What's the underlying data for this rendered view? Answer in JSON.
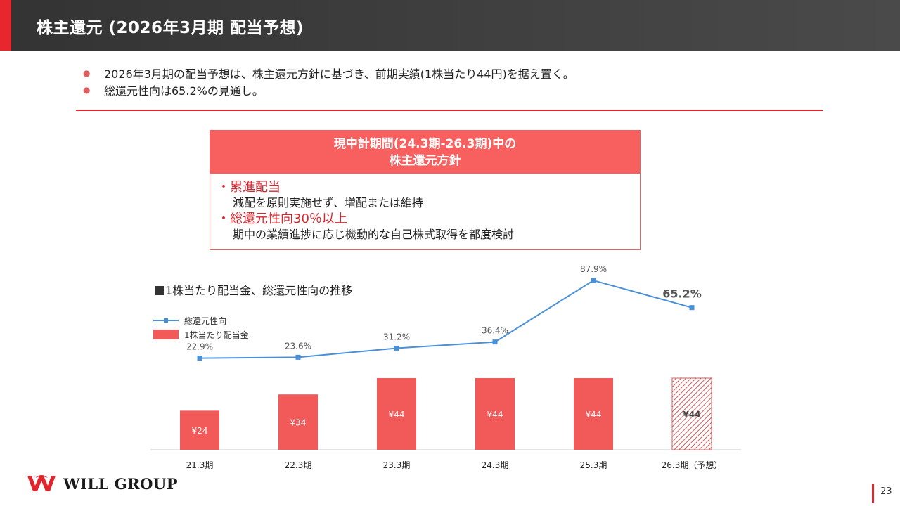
{
  "header": {
    "title": "株主還元 (2026年3月期 配当予想)"
  },
  "bullets": [
    "2026年3月期の配当予想は、株主還元方針に基づき、前期実績(1株当たり44円)を据え置く。",
    "総還元性向は65.2%の見通し。"
  ],
  "policy": {
    "heading_line1": "現中計期間(24.3期-26.3期)中の",
    "heading_line2": "株主還元方針",
    "items": [
      {
        "title": "・累進配当",
        "desc": "減配を原則実施せず、増配または維持"
      },
      {
        "title": "・総還元性向30％以上",
        "desc": "期中の業績進捗に応じ機動的な自己株式取得を都度検討"
      }
    ]
  },
  "chart_title": "1株当たり配当金、総還元性向の推移",
  "chart_data": {
    "type": "bar",
    "categories": [
      "21.3期",
      "22.3期",
      "23.3期",
      "24.3期",
      "25.3期",
      "26.3期（予想）"
    ],
    "series": [
      {
        "name": "1株当たり配当金",
        "type": "bar",
        "values": [
          24,
          34,
          44,
          44,
          44,
          44
        ],
        "labels": [
          "¥24",
          "¥34",
          "¥44",
          "¥44",
          "¥44",
          "¥44"
        ],
        "forecast_index": 5
      },
      {
        "name": "総還元性向",
        "type": "line",
        "values": [
          22.9,
          23.6,
          31.2,
          36.4,
          87.9,
          65.2
        ],
        "labels": [
          "22.9%",
          "23.6%",
          "31.2%",
          "36.4%",
          "87.9%",
          "65.2%"
        ],
        "highlight_index": 5
      }
    ],
    "colors": {
      "bar": "#f25a5a",
      "line": "#4a90d9",
      "forecast_hatch": "#d65a5a"
    }
  },
  "footer": {
    "logo_text": "WILL GROUP",
    "page_number": "23"
  },
  "colors": {
    "accent": "#e0252c",
    "header_bg": "#3c3c3c",
    "policy_head": "#f86060"
  }
}
